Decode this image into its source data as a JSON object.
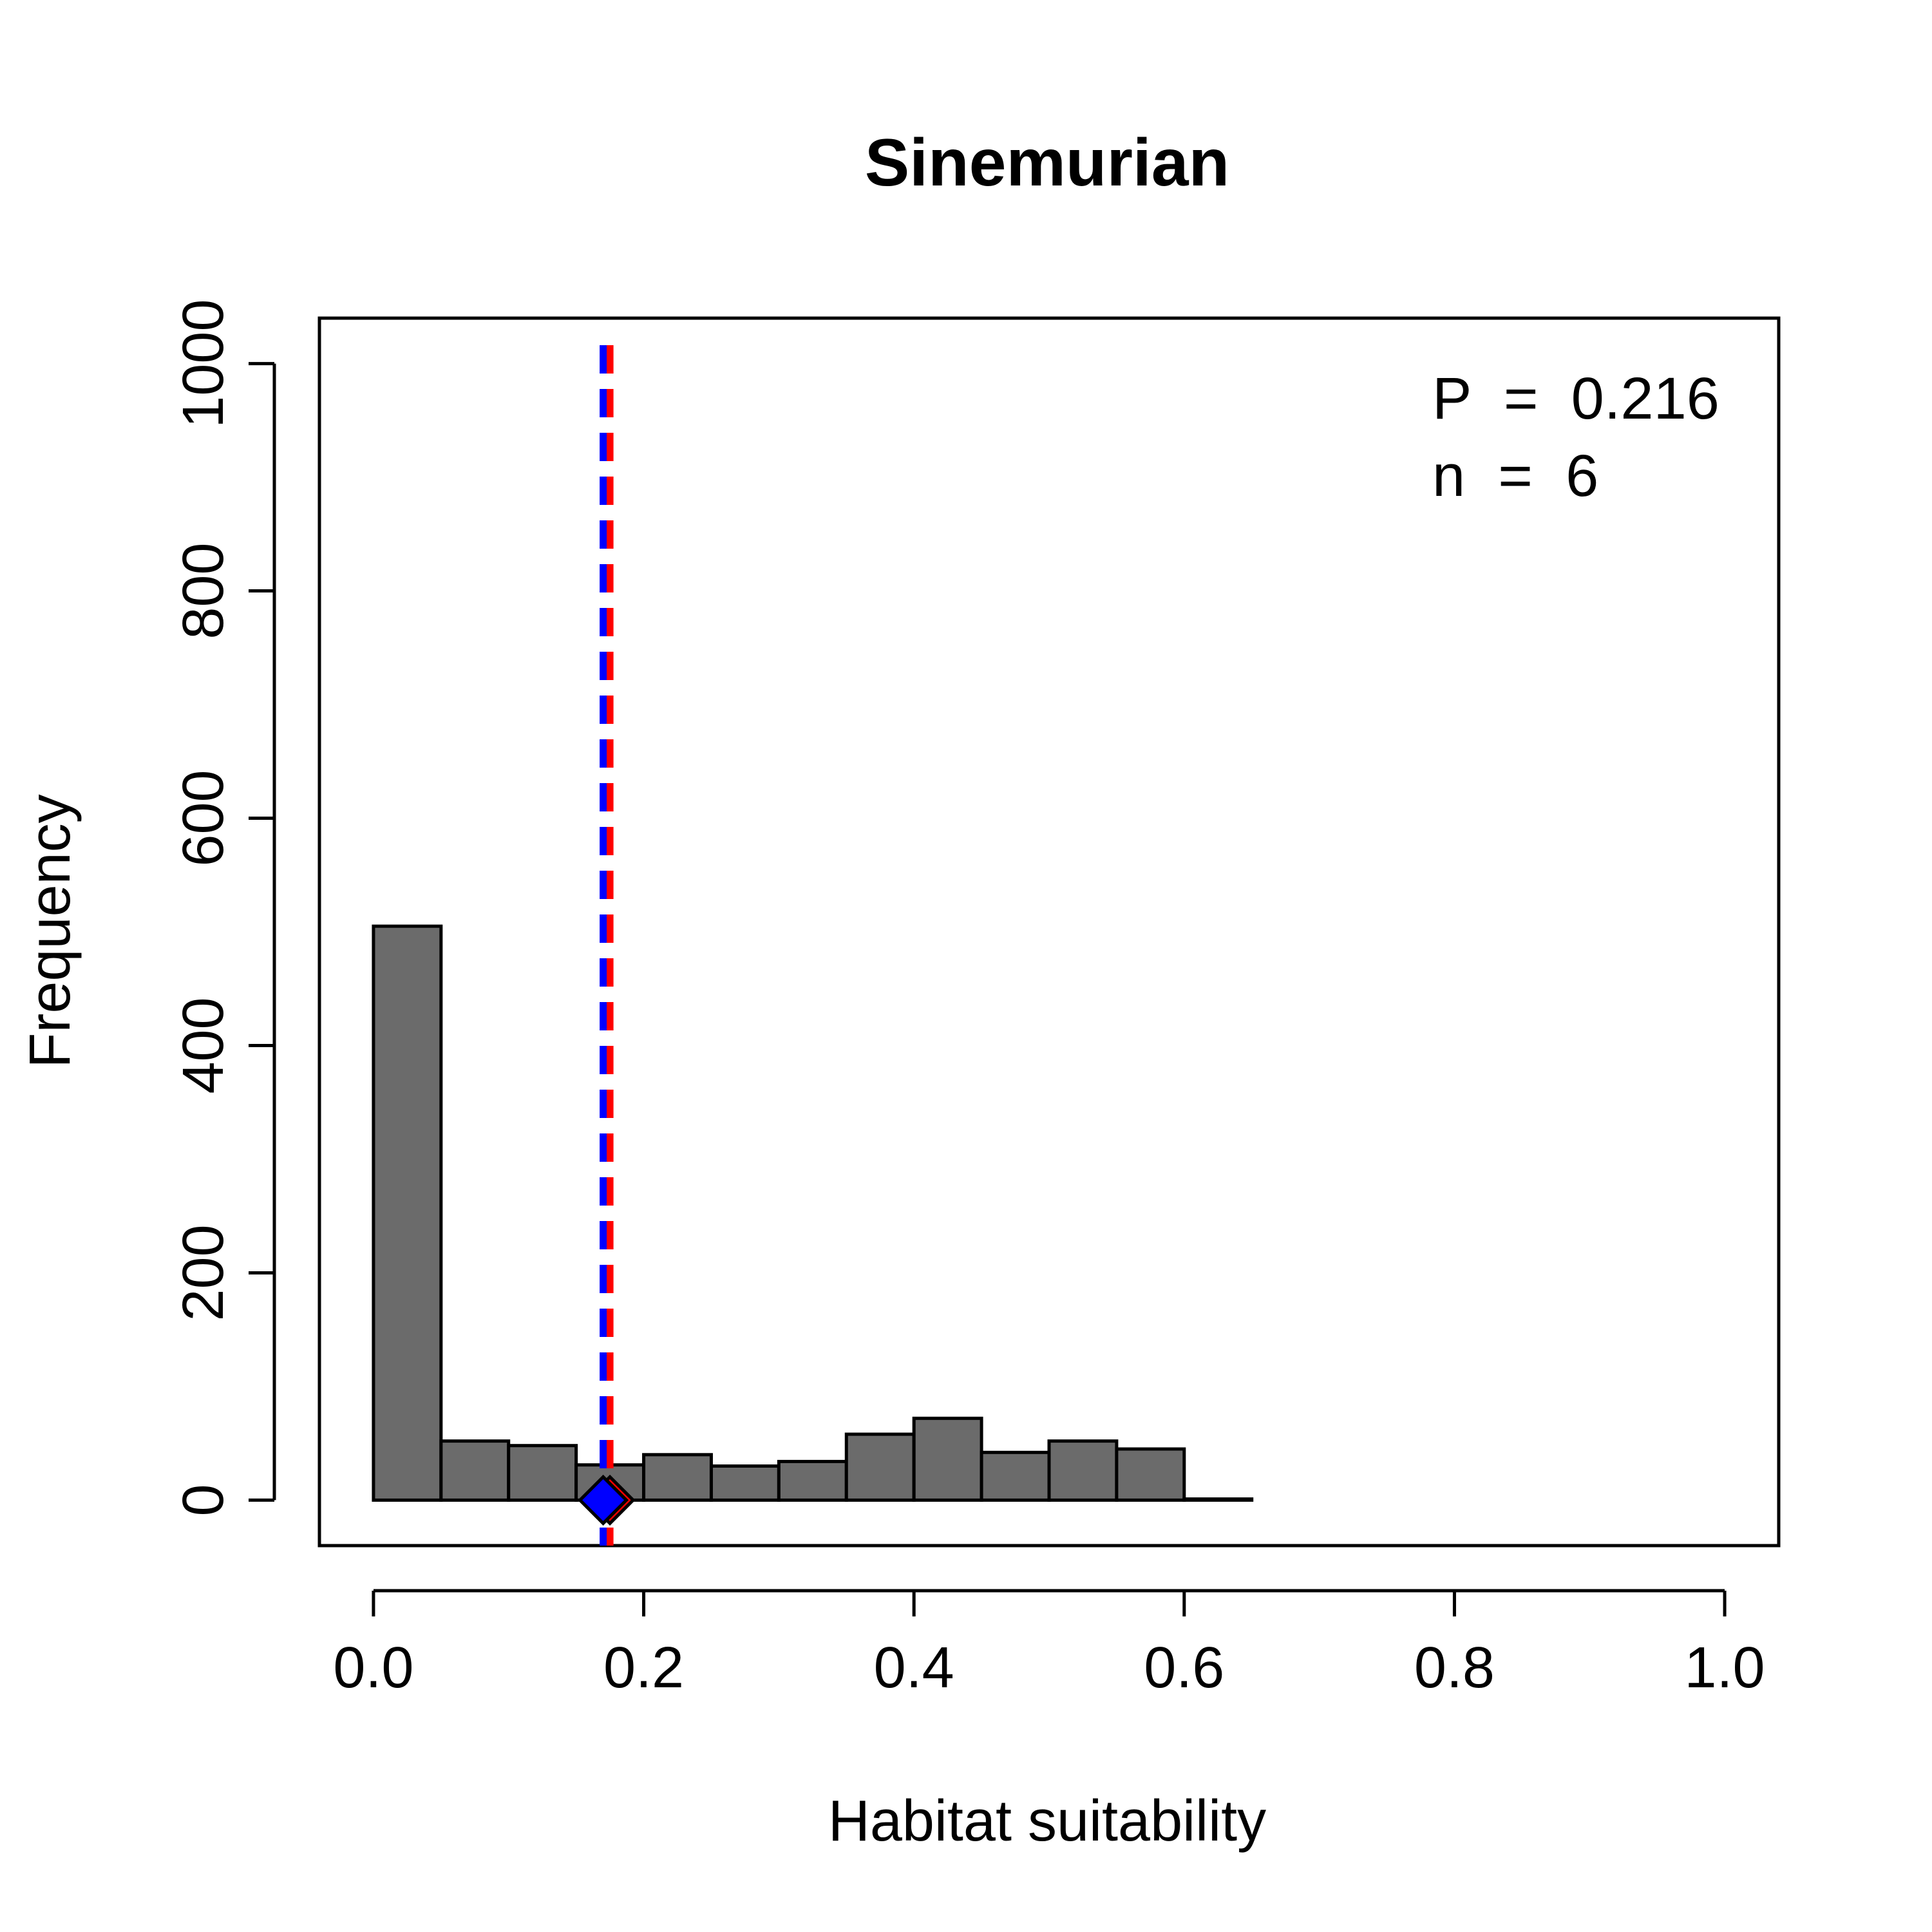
{
  "chart_data": {
    "type": "bar",
    "title": "Sinemurian",
    "xlabel": "Habitat suitability",
    "ylabel": "Frequency",
    "xlim": [
      -0.04,
      1.04
    ],
    "ylim": [
      -40,
      1040
    ],
    "grid": false,
    "legend": "none",
    "x_ticks": [
      {
        "value": 0.0,
        "label": "0.0"
      },
      {
        "value": 0.2,
        "label": "0.2"
      },
      {
        "value": 0.4,
        "label": "0.4"
      },
      {
        "value": 0.6,
        "label": "0.6"
      },
      {
        "value": 0.8,
        "label": "0.8"
      },
      {
        "value": 1.0,
        "label": "1.0"
      }
    ],
    "y_ticks": [
      {
        "value": 0,
        "label": "0"
      },
      {
        "value": 200,
        "label": "200"
      },
      {
        "value": 400,
        "label": "400"
      },
      {
        "value": 600,
        "label": "600"
      },
      {
        "value": 800,
        "label": "800"
      },
      {
        "value": 1000,
        "label": "1000"
      }
    ],
    "bin_edges": [
      0.0,
      0.05,
      0.1,
      0.15,
      0.2,
      0.25,
      0.3,
      0.35,
      0.4,
      0.45,
      0.5,
      0.55,
      0.6,
      0.65
    ],
    "values": [
      505,
      52,
      48,
      31,
      40,
      30,
      34,
      58,
      72,
      42,
      52,
      45,
      1
    ],
    "reference_lines": [
      {
        "x": 0.175,
        "color": "#ff0000",
        "style": "dashed"
      },
      {
        "x": 0.17,
        "color": "#0000ff",
        "style": "dashed"
      }
    ],
    "markers": [
      {
        "x": 0.175,
        "y": 0,
        "shape": "diamond",
        "fill": "#ff0000",
        "stroke": "#000000"
      },
      {
        "x": 0.17,
        "y": 0,
        "shape": "diamond",
        "fill": "#0000ff",
        "stroke": "#000000"
      }
    ],
    "annotations": [
      {
        "text": "P  =  0.216",
        "position": "top-right"
      },
      {
        "text": "n  =  6",
        "position": "top-right"
      }
    ],
    "colors": {
      "bar_fill": "#6b6b6b",
      "bar_stroke": "#000000"
    }
  }
}
